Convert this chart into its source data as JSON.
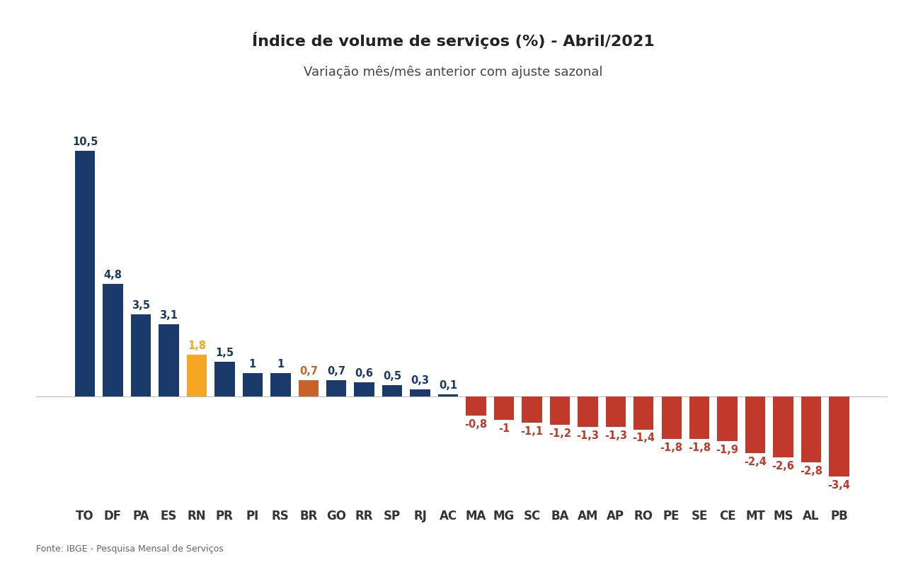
{
  "title": "Índice de volume de serviços (%) - Abril/2021",
  "subtitle": "Variação mês/mês anterior com ajuste sazonal",
  "fonte": "Fonte: IBGE - Pesquisa Mensal de Serviços",
  "categories": [
    "TO",
    "DF",
    "PA",
    "ES",
    "RN",
    "PR",
    "PI",
    "RS",
    "BR",
    "GO",
    "RR",
    "SP",
    "RJ",
    "AC",
    "MA",
    "MG",
    "SC",
    "BA",
    "AM",
    "AP",
    "RO",
    "PE",
    "SE",
    "CE",
    "MT",
    "MS",
    "AL",
    "PB"
  ],
  "values": [
    10.5,
    4.8,
    3.5,
    3.1,
    1.8,
    1.5,
    1.0,
    1.0,
    0.7,
    0.7,
    0.6,
    0.5,
    0.3,
    0.1,
    -0.8,
    -1.0,
    -1.1,
    -1.2,
    -1.3,
    -1.3,
    -1.4,
    -1.8,
    -1.8,
    -1.9,
    -2.4,
    -2.6,
    -2.8,
    -3.4
  ],
  "colors": [
    "#1a3a6b",
    "#1a3a6b",
    "#1a3a6b",
    "#1a3a6b",
    "#f5a623",
    "#1a3a6b",
    "#1a3a6b",
    "#1a3a6b",
    "#c8622a",
    "#1a3a6b",
    "#1a3a6b",
    "#1a3a6b",
    "#1a3a6b",
    "#1a3a6b",
    "#c0392b",
    "#c0392b",
    "#c0392b",
    "#c0392b",
    "#c0392b",
    "#c0392b",
    "#c0392b",
    "#c0392b",
    "#c0392b",
    "#c0392b",
    "#c0392b",
    "#c0392b",
    "#c0392b",
    "#c0392b"
  ],
  "label_colors_positive": "#1a3a6b",
  "label_colors_negative": "#c0392b",
  "label_color_rn": "#f5a623",
  "label_color_br": "#c8622a",
  "background_color": "#ffffff",
  "title_fontsize": 16,
  "subtitle_fontsize": 13,
  "tick_fontsize": 12,
  "label_fontsize": 10.5,
  "ylim": [
    -4.5,
    12.5
  ]
}
